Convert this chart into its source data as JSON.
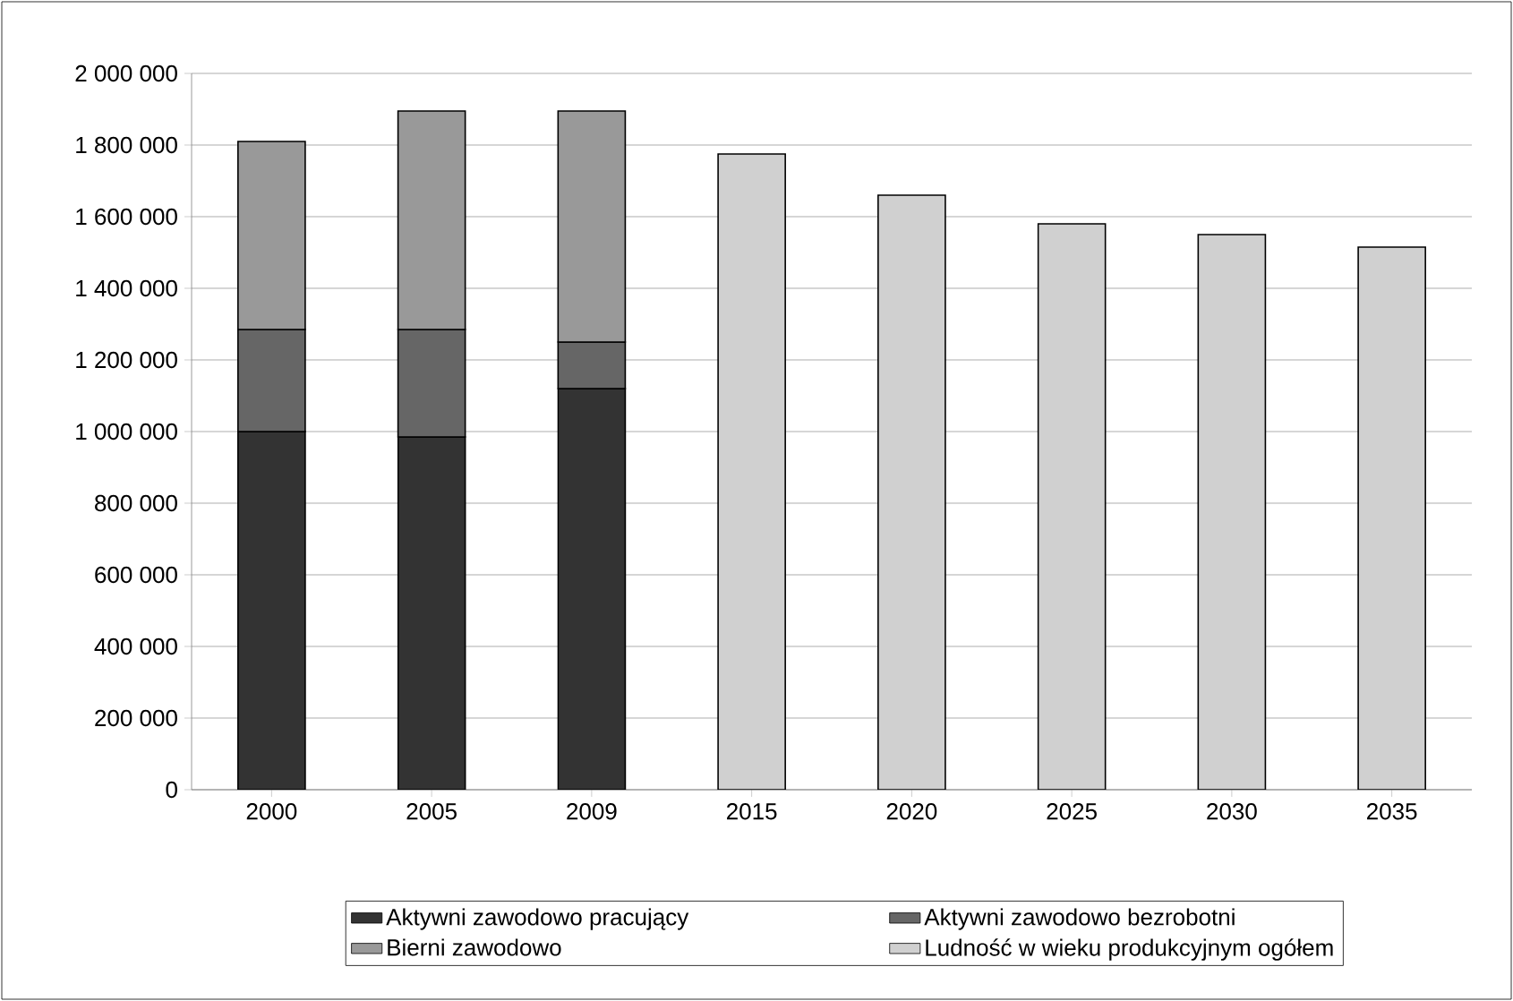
{
  "chart_data": {
    "type": "bar",
    "stacked": true,
    "categories": [
      "2000",
      "2005",
      "2009",
      "2015",
      "2020",
      "2025",
      "2030",
      "2035"
    ],
    "series": [
      {
        "name": "Aktywni zawodowo pracujący",
        "color": "#333333",
        "values": [
          1000000,
          985000,
          1120000,
          null,
          null,
          null,
          null,
          null
        ]
      },
      {
        "name": "Aktywni zawodowo bezrobotni",
        "color": "#666666",
        "values": [
          285000,
          300000,
          130000,
          null,
          null,
          null,
          null,
          null
        ]
      },
      {
        "name": "Bierni zawodowo",
        "color": "#999999",
        "values": [
          525000,
          610000,
          645000,
          null,
          null,
          null,
          null,
          null
        ]
      },
      {
        "name": "Ludność w wieku produkcyjnym ogółem",
        "color": "#d0d0d0",
        "values": [
          null,
          null,
          null,
          1775000,
          1660000,
          1580000,
          1550000,
          1515000
        ]
      }
    ],
    "ylim": [
      0,
      2000000
    ],
    "yticks": [
      {
        "value": 0,
        "label": "0"
      },
      {
        "value": 200000,
        "label": "200 000"
      },
      {
        "value": 400000,
        "label": "400 000"
      },
      {
        "value": 600000,
        "label": "600 000"
      },
      {
        "value": 800000,
        "label": "800 000"
      },
      {
        "value": 1000000,
        "label": "1 000 000"
      },
      {
        "value": 1200000,
        "label": "1 200 000"
      },
      {
        "value": 1400000,
        "label": "1 400 000"
      },
      {
        "value": 1600000,
        "label": "1 600 000"
      },
      {
        "value": 1800000,
        "label": "1 800 000"
      },
      {
        "value": 2000000,
        "label": "2 000 000"
      }
    ],
    "grid": "y",
    "legend": "bottom"
  }
}
